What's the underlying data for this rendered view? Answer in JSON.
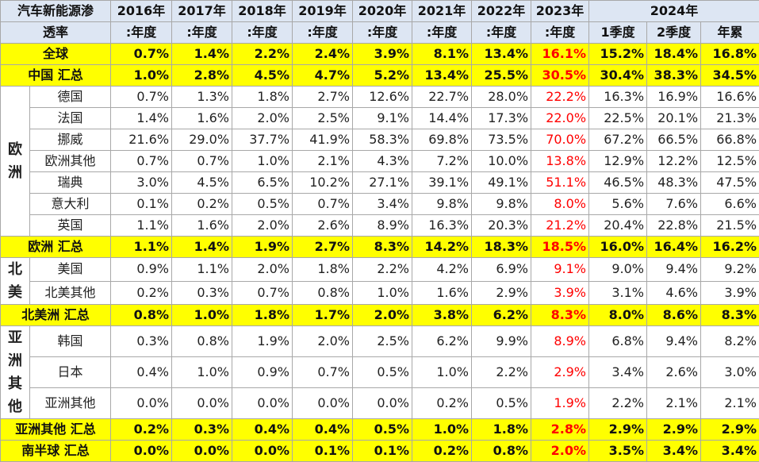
{
  "header": {
    "title_line1": "汽车新能源渗",
    "title_line2": "透率",
    "years": [
      "2016年",
      "2017年",
      "2018年",
      "2019年",
      "2020年",
      "2021年",
      "2022年",
      "2023年"
    ],
    "year_2024": "2024年",
    "sub": [
      ":年度",
      ":年度",
      ":年度",
      ":年度",
      ":年度",
      ":年度",
      ":年度",
      ":年度"
    ],
    "sub_2024": [
      "1季度",
      "2季度",
      "年累"
    ]
  },
  "regions": {
    "europe": "欧洲",
    "north_america": "北美",
    "asia_other": "亚洲其他"
  },
  "rows": [
    {
      "label": "全球",
      "values": [
        "0.7%",
        "1.4%",
        "2.2%",
        "2.4%",
        "3.9%",
        "8.1%",
        "13.4%",
        "16.1%",
        "15.2%",
        "18.4%",
        "16.8%"
      ]
    },
    {
      "label": "中国 汇总",
      "values": [
        "1.0%",
        "2.8%",
        "4.5%",
        "4.7%",
        "5.2%",
        "13.4%",
        "25.5%",
        "30.5%",
        "30.4%",
        "38.3%",
        "34.5%"
      ]
    },
    {
      "label": "德国",
      "values": [
        "0.7%",
        "1.3%",
        "1.8%",
        "2.7%",
        "12.6%",
        "22.7%",
        "28.0%",
        "22.2%",
        "16.3%",
        "16.9%",
        "16.6%"
      ]
    },
    {
      "label": "法国",
      "values": [
        "1.4%",
        "1.6%",
        "2.0%",
        "2.5%",
        "9.1%",
        "14.4%",
        "17.3%",
        "22.0%",
        "22.5%",
        "20.1%",
        "21.3%"
      ]
    },
    {
      "label": "挪威",
      "values": [
        "21.6%",
        "29.0%",
        "37.7%",
        "41.9%",
        "58.3%",
        "69.8%",
        "73.5%",
        "70.0%",
        "67.2%",
        "66.5%",
        "66.8%"
      ]
    },
    {
      "label": "欧洲其他",
      "values": [
        "0.7%",
        "0.7%",
        "1.0%",
        "2.1%",
        "4.3%",
        "7.2%",
        "10.0%",
        "13.8%",
        "12.9%",
        "12.2%",
        "12.5%"
      ]
    },
    {
      "label": "瑞典",
      "values": [
        "3.0%",
        "4.5%",
        "6.5%",
        "10.2%",
        "27.1%",
        "39.1%",
        "49.1%",
        "51.1%",
        "46.5%",
        "48.3%",
        "47.5%"
      ]
    },
    {
      "label": "意大利",
      "values": [
        "0.1%",
        "0.2%",
        "0.5%",
        "0.7%",
        "3.4%",
        "9.8%",
        "9.8%",
        "8.0%",
        "5.6%",
        "7.6%",
        "6.6%"
      ]
    },
    {
      "label": "英国",
      "values": [
        "1.1%",
        "1.6%",
        "2.0%",
        "2.6%",
        "8.9%",
        "16.3%",
        "20.3%",
        "21.2%",
        "20.4%",
        "22.8%",
        "21.5%"
      ]
    },
    {
      "label": "欧洲 汇总",
      "values": [
        "1.1%",
        "1.4%",
        "1.9%",
        "2.7%",
        "8.3%",
        "14.2%",
        "18.3%",
        "18.5%",
        "16.0%",
        "16.4%",
        "16.2%"
      ]
    },
    {
      "label": "美国",
      "values": [
        "0.9%",
        "1.1%",
        "2.0%",
        "1.8%",
        "2.2%",
        "4.2%",
        "6.9%",
        "9.1%",
        "9.0%",
        "9.4%",
        "9.2%"
      ]
    },
    {
      "label": "北美其他",
      "values": [
        "0.2%",
        "0.3%",
        "0.7%",
        "0.8%",
        "1.0%",
        "1.6%",
        "2.9%",
        "3.9%",
        "3.1%",
        "4.6%",
        "3.9%"
      ]
    },
    {
      "label": "北美洲 汇总",
      "values": [
        "0.8%",
        "1.0%",
        "1.8%",
        "1.7%",
        "2.0%",
        "3.8%",
        "6.2%",
        "8.3%",
        "8.0%",
        "8.6%",
        "8.3%"
      ]
    },
    {
      "label": "韩国",
      "values": [
        "0.3%",
        "0.8%",
        "1.9%",
        "2.0%",
        "2.5%",
        "6.2%",
        "9.9%",
        "8.9%",
        "6.8%",
        "9.4%",
        "8.2%"
      ]
    },
    {
      "label": "日本",
      "values": [
        "0.4%",
        "1.0%",
        "0.9%",
        "0.7%",
        "0.5%",
        "1.0%",
        "2.2%",
        "2.9%",
        "3.4%",
        "2.6%",
        "3.0%"
      ]
    },
    {
      "label": "亚洲其他",
      "values": [
        "0.0%",
        "0.0%",
        "0.0%",
        "0.0%",
        "0.0%",
        "0.2%",
        "0.5%",
        "1.9%",
        "2.2%",
        "2.1%",
        "2.1%"
      ]
    },
    {
      "label": "亚洲其他 汇总",
      "values": [
        "0.2%",
        "0.3%",
        "0.4%",
        "0.4%",
        "0.5%",
        "1.0%",
        "1.8%",
        "2.8%",
        "2.9%",
        "2.9%",
        "2.9%"
      ]
    },
    {
      "label": "南半球 汇总",
      "values": [
        "0.0%",
        "0.0%",
        "0.0%",
        "0.1%",
        "0.1%",
        "0.2%",
        "0.8%",
        "2.0%",
        "3.5%",
        "3.4%",
        "3.4%"
      ]
    }
  ],
  "colors": {
    "summary_bg": "#ffff00",
    "header_bg": "#dde6f3",
    "highlight_2023": "#ff0000"
  }
}
